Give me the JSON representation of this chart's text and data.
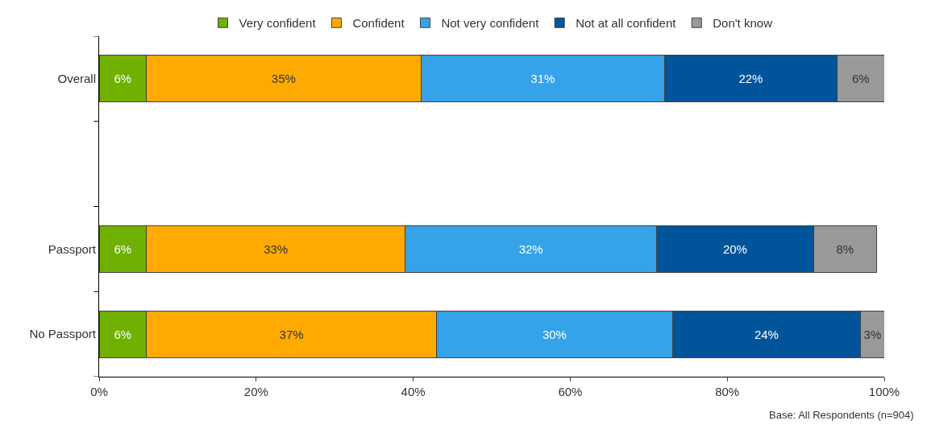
{
  "chart_data": {
    "type": "bar",
    "orientation": "horizontal",
    "stacked": true,
    "categories": [
      "Overall",
      null,
      "Passport",
      "No Passport"
    ],
    "series": [
      {
        "name": "Very confident",
        "color": "#70b000",
        "values": [
          6,
          null,
          6,
          6
        ],
        "value_labels": [
          "6%",
          null,
          "6%",
          "6%"
        ]
      },
      {
        "name": "Confident",
        "color": "#ffaa00",
        "values": [
          35,
          null,
          33,
          37
        ],
        "value_labels": [
          "35%",
          null,
          "33%",
          "37%"
        ]
      },
      {
        "name": "Not very confident",
        "color": "#36a2e8",
        "values": [
          31,
          null,
          32,
          30
        ],
        "value_labels": [
          "31%",
          null,
          "32%",
          "30%"
        ]
      },
      {
        "name": "Not at all confident",
        "color": "#00559a",
        "values": [
          22,
          null,
          20,
          24
        ],
        "value_labels": [
          "22%",
          null,
          "20%",
          "24%"
        ]
      },
      {
        "name": "Don't know",
        "color": "#999999",
        "values": [
          6,
          null,
          8,
          3
        ],
        "value_labels": [
          "6%",
          null,
          "8%",
          "3%"
        ]
      }
    ],
    "xlim": [
      0,
      100
    ],
    "xticks": [
      {
        "value": 0,
        "label": "0%"
      },
      {
        "value": 20,
        "label": "20%"
      },
      {
        "value": 40,
        "label": "40%"
      },
      {
        "value": 60,
        "label": "60%"
      },
      {
        "value": 80,
        "label": "80%"
      },
      {
        "value": 100,
        "label": "100%"
      }
    ],
    "legend": "top",
    "annotations": [
      "Base: All Respondents (n=904)"
    ]
  }
}
